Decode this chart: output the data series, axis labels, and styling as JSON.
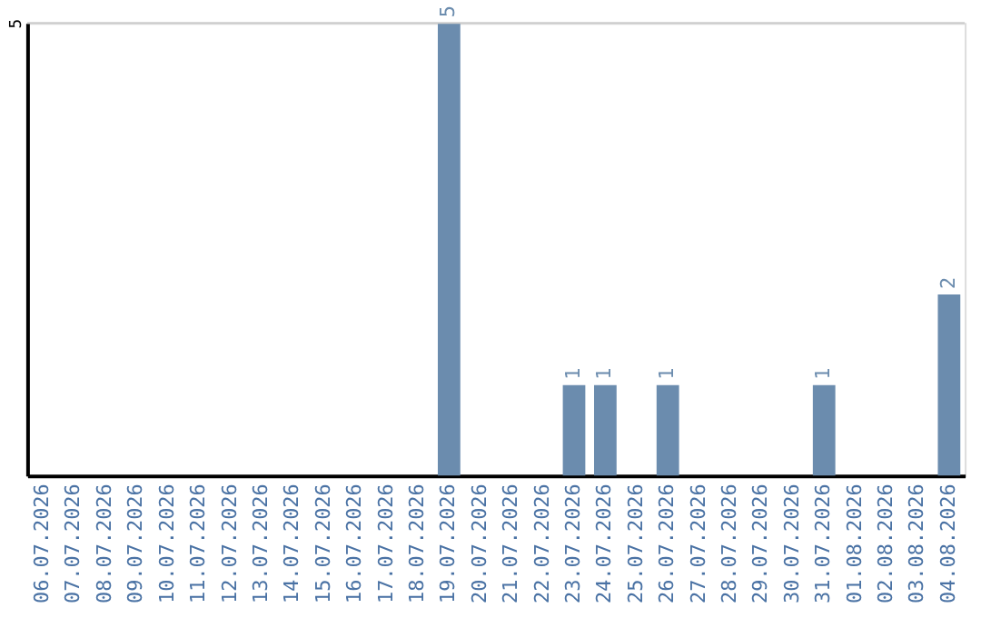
{
  "chart_data": {
    "type": "bar",
    "categories": [
      "06.07.2026",
      "07.07.2026",
      "08.07.2026",
      "09.07.2026",
      "10.07.2026",
      "11.07.2026",
      "12.07.2026",
      "13.07.2026",
      "14.07.2026",
      "15.07.2026",
      "16.07.2026",
      "17.07.2026",
      "18.07.2026",
      "19.07.2026",
      "20.07.2026",
      "21.07.2026",
      "22.07.2026",
      "23.07.2026",
      "24.07.2026",
      "25.07.2026",
      "26.07.2026",
      "27.07.2026",
      "28.07.2026",
      "29.07.2026",
      "30.07.2026",
      "31.07.2026",
      "01.08.2026",
      "02.08.2026",
      "03.08.2026",
      "04.08.2026"
    ],
    "values": [
      null,
      null,
      null,
      null,
      null,
      null,
      null,
      null,
      null,
      null,
      null,
      null,
      null,
      5,
      null,
      null,
      null,
      1,
      1,
      null,
      1,
      null,
      null,
      null,
      null,
      1,
      null,
      null,
      null,
      2
    ],
    "data_labels": true,
    "color": "#6b8cae",
    "ylim": [
      0,
      5
    ],
    "yticks": [
      5
    ],
    "ref_lines": [
      {
        "axis": "y",
        "value": 5,
        "color": "#cccccc"
      }
    ]
  }
}
